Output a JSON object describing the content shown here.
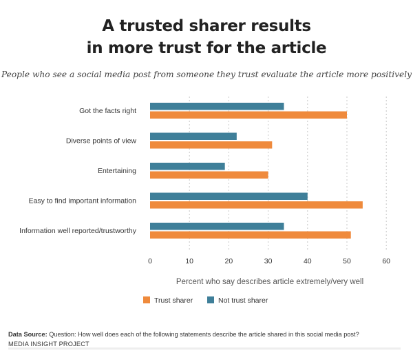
{
  "title_line1": "A trusted sharer results",
  "title_line2": "in more trust for the article",
  "subtitle": "People who see a social media post from someone they trust evaluate the article more positively",
  "footer": {
    "source_label": "Data Source:",
    "source_text": "Question: How well does each of the following statements describe the article shared in this social media post?",
    "org": "MEDIA INSIGHT PROJECT"
  },
  "colors": {
    "trust": "#EF8A3C",
    "not_trust": "#3F7F99",
    "grid": "#C8C8C8"
  },
  "chart_data": {
    "type": "bar",
    "orientation": "horizontal",
    "title": "A trusted sharer results in more trust for the article",
    "xlabel": "Percent who say describes article extremely/very well",
    "ylabel": "",
    "xlim": [
      0,
      60
    ],
    "xticks": [
      0,
      10,
      20,
      30,
      40,
      50,
      60
    ],
    "grid": true,
    "legend_position": "bottom",
    "categories": [
      "Got the facts right",
      "Diverse points of view",
      "Entertaining",
      "Easy to find important information",
      "Information well reported/trustworthy"
    ],
    "series": [
      {
        "name": "Trust sharer",
        "values": [
          50,
          31,
          30,
          54,
          51
        ]
      },
      {
        "name": "Not trust sharer",
        "values": [
          34,
          22,
          19,
          40,
          34
        ]
      }
    ]
  }
}
